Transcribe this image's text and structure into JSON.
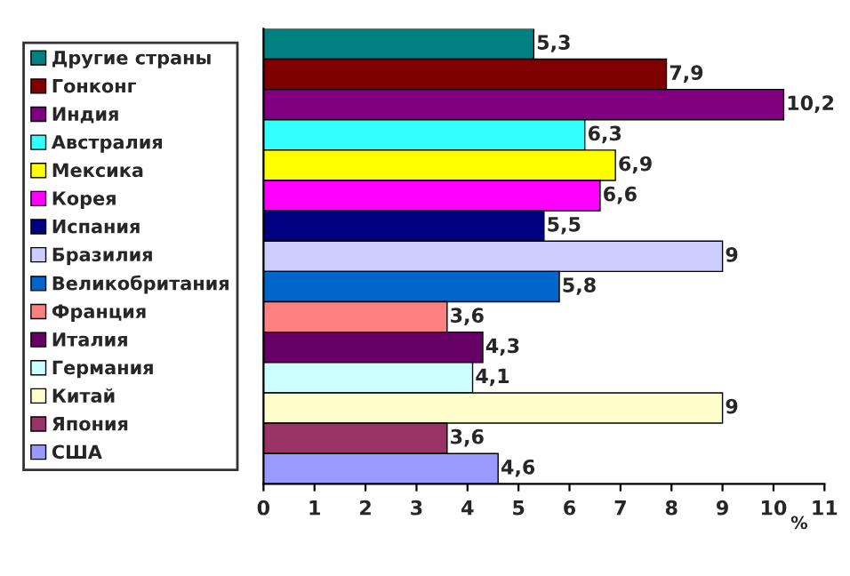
{
  "chart_data": {
    "type": "bar",
    "orientation": "horizontal",
    "categories": [
      null,
      null,
      null,
      null,
      null,
      null,
      null,
      null,
      null,
      null,
      null,
      null,
      null,
      null,
      null
    ],
    "series": [
      {
        "name": "Другие страны",
        "color": "#008080",
        "values": [
          5.3,
          null,
          null,
          null,
          null,
          null,
          null,
          null,
          null,
          null,
          null,
          null,
          null,
          null,
          null
        ],
        "value_labels": [
          "5,3",
          null,
          null,
          null,
          null,
          null,
          null,
          null,
          null,
          null,
          null,
          null,
          null,
          null,
          null
        ]
      },
      {
        "name": "Гонконг",
        "color": "#800000",
        "values": [
          null,
          7.9,
          null,
          null,
          null,
          null,
          null,
          null,
          null,
          null,
          null,
          null,
          null,
          null,
          null
        ],
        "value_labels": [
          null,
          "7,9",
          null,
          null,
          null,
          null,
          null,
          null,
          null,
          null,
          null,
          null,
          null,
          null,
          null
        ]
      },
      {
        "name": "Индия",
        "color": "#800080",
        "values": [
          null,
          null,
          10.2,
          null,
          null,
          null,
          null,
          null,
          null,
          null,
          null,
          null,
          null,
          null,
          null
        ],
        "value_labels": [
          null,
          null,
          "10,2",
          null,
          null,
          null,
          null,
          null,
          null,
          null,
          null,
          null,
          null,
          null,
          null
        ]
      },
      {
        "name": "Австралия",
        "color": "#33ffff",
        "values": [
          null,
          null,
          null,
          6.3,
          null,
          null,
          null,
          null,
          null,
          null,
          null,
          null,
          null,
          null,
          null
        ],
        "value_labels": [
          null,
          null,
          null,
          "6,3",
          null,
          null,
          null,
          null,
          null,
          null,
          null,
          null,
          null,
          null,
          null
        ]
      },
      {
        "name": "Мексика",
        "color": "#ffff00",
        "values": [
          null,
          null,
          null,
          null,
          6.9,
          null,
          null,
          null,
          null,
          null,
          null,
          null,
          null,
          null,
          null
        ],
        "value_labels": [
          null,
          null,
          null,
          null,
          "6,9",
          null,
          null,
          null,
          null,
          null,
          null,
          null,
          null,
          null,
          null
        ]
      },
      {
        "name": "Корея",
        "color": "#ff00ff",
        "values": [
          null,
          null,
          null,
          null,
          null,
          6.6,
          null,
          null,
          null,
          null,
          null,
          null,
          null,
          null,
          null
        ],
        "value_labels": [
          null,
          null,
          null,
          null,
          null,
          "6,6",
          null,
          null,
          null,
          null,
          null,
          null,
          null,
          null,
          null
        ]
      },
      {
        "name": "Испания",
        "color": "#000080",
        "values": [
          null,
          null,
          null,
          null,
          null,
          null,
          5.5,
          null,
          null,
          null,
          null,
          null,
          null,
          null,
          null
        ],
        "value_labels": [
          null,
          null,
          null,
          null,
          null,
          null,
          "5,5",
          null,
          null,
          null,
          null,
          null,
          null,
          null,
          null
        ]
      },
      {
        "name": "Бразилия",
        "color": "#ccccff",
        "values": [
          null,
          null,
          null,
          null,
          null,
          null,
          null,
          9,
          null,
          null,
          null,
          null,
          null,
          null,
          null
        ],
        "value_labels": [
          null,
          null,
          null,
          null,
          null,
          null,
          null,
          "9",
          null,
          null,
          null,
          null,
          null,
          null,
          null
        ]
      },
      {
        "name": "Великобритания",
        "color": "#0066cc",
        "values": [
          null,
          null,
          null,
          null,
          null,
          null,
          null,
          null,
          5.8,
          null,
          null,
          null,
          null,
          null,
          null
        ],
        "value_labels": [
          null,
          null,
          null,
          null,
          null,
          null,
          null,
          null,
          "5,8",
          null,
          null,
          null,
          null,
          null,
          null
        ]
      },
      {
        "name": "Франция",
        "color": "#ff8080",
        "values": [
          null,
          null,
          null,
          null,
          null,
          null,
          null,
          null,
          null,
          3.6,
          null,
          null,
          null,
          null,
          null
        ],
        "value_labels": [
          null,
          null,
          null,
          null,
          null,
          null,
          null,
          null,
          null,
          "3,6",
          null,
          null,
          null,
          null,
          null
        ]
      },
      {
        "name": "Италия",
        "color": "#660066",
        "values": [
          null,
          null,
          null,
          null,
          null,
          null,
          null,
          null,
          null,
          null,
          4.3,
          null,
          null,
          null,
          null
        ],
        "value_labels": [
          null,
          null,
          null,
          null,
          null,
          null,
          null,
          null,
          null,
          null,
          "4,3",
          null,
          null,
          null,
          null
        ]
      },
      {
        "name": "Германия",
        "color": "#ccffff",
        "values": [
          null,
          null,
          null,
          null,
          null,
          null,
          null,
          null,
          null,
          null,
          null,
          4.1,
          null,
          null,
          null
        ],
        "value_labels": [
          null,
          null,
          null,
          null,
          null,
          null,
          null,
          null,
          null,
          null,
          null,
          "4,1",
          null,
          null,
          null
        ]
      },
      {
        "name": "Китай",
        "color": "#ffffcc",
        "values": [
          null,
          null,
          null,
          null,
          null,
          null,
          null,
          null,
          null,
          null,
          null,
          null,
          9,
          null,
          null
        ],
        "value_labels": [
          null,
          null,
          null,
          null,
          null,
          null,
          null,
          null,
          null,
          null,
          null,
          null,
          "9",
          null,
          null
        ]
      },
      {
        "name": "Япония",
        "color": "#993366",
        "values": [
          null,
          null,
          null,
          null,
          null,
          null,
          null,
          null,
          null,
          null,
          null,
          null,
          null,
          3.6,
          null
        ],
        "value_labels": [
          null,
          null,
          null,
          null,
          null,
          null,
          null,
          null,
          null,
          null,
          null,
          null,
          null,
          "3,6",
          null
        ]
      },
      {
        "name": "США",
        "color": "#9999ff",
        "values": [
          null,
          null,
          null,
          null,
          null,
          null,
          null,
          null,
          null,
          null,
          null,
          null,
          null,
          null,
          4.6
        ],
        "value_labels": [
          null,
          null,
          null,
          null,
          null,
          null,
          null,
          null,
          null,
          null,
          null,
          null,
          null,
          null,
          "4,6"
        ]
      }
    ],
    "xlabel": "%",
    "xlim": [
      0,
      11
    ],
    "xticks": [
      0,
      1,
      2,
      3,
      4,
      5,
      6,
      7,
      8,
      9,
      10,
      11
    ],
    "legend": "left",
    "grid": false
  }
}
